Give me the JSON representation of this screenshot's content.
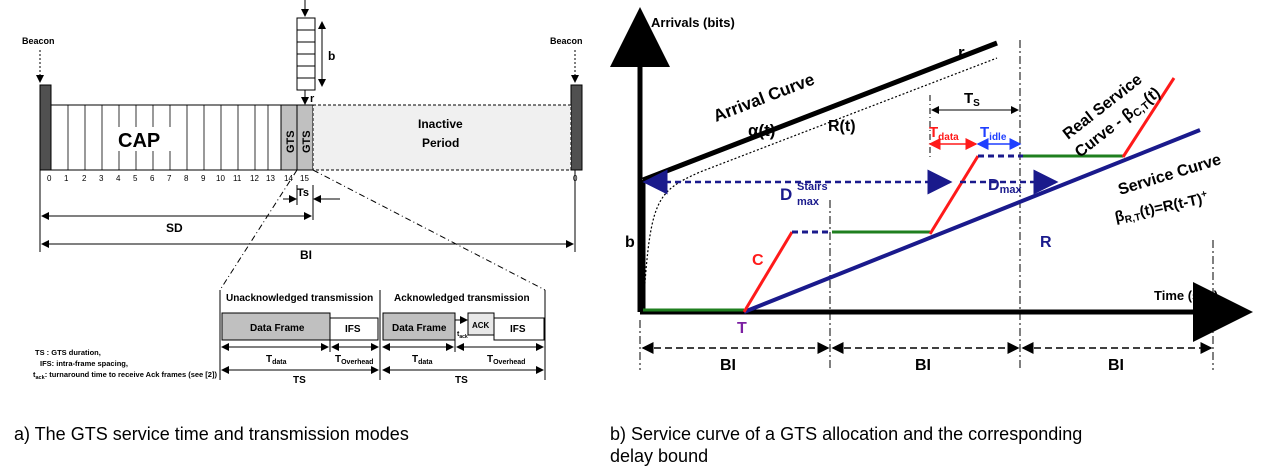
{
  "left": {
    "beacon_left": "Beacon",
    "beacon_right": "Beacon",
    "queue_b": "b",
    "queue_r": "r",
    "cap": "CAP",
    "gts1": "GTS",
    "gts2": "GTS",
    "inactive_line1": "Inactive",
    "inactive_line2": "Period",
    "slots": [
      "0",
      "1",
      "2",
      "3",
      "4",
      "5",
      "6",
      "7",
      "8",
      "9",
      "10",
      "11",
      "12",
      "13",
      "14",
      "15"
    ],
    "slot_end": "0",
    "ts": "Ts",
    "sd": "SD",
    "bi": "BI",
    "unack_title": "Unacknowledged transmission",
    "ack_title": "Acknowledged transmission",
    "data_frame": "Data Frame",
    "ifs": "IFS",
    "ack": "ACK",
    "tack": "t",
    "tack_sub": "ack",
    "t_data": "T",
    "t_data_sub": "data",
    "t_overhead": "T",
    "t_overhead_sub": "Overhead",
    "ts_bottom": "TS",
    "legend": [
      "TS : GTS duration,",
      "IFS: intra-frame spacing,",
      "t",
      "ack",
      ": turnaround time to receive Ack frames (see [2])"
    ]
  },
  "right": {
    "y_axis": "Arrivals (bits)",
    "x_axis": "Time (sec)",
    "arrival_curve": "Arrival Curve",
    "alpha": "α(t)",
    "r": "r",
    "rt": "R(t)",
    "ts": "T",
    "ts_sub": "S",
    "tdata": "T",
    "tdata_sub": "data",
    "tidle": "T",
    "tidle_sub": "idle",
    "real_service_1": "Real Service",
    "real_service_2": "Curve - β",
    "real_service_sub": "C,T",
    "real_service_3": "(t)",
    "service_curve": "Service Curve",
    "beta": "β",
    "beta_sub": "R,T",
    "beta_rest": "(t)=R(t-T)",
    "beta_sup": "+",
    "dmax_stairs": "D",
    "dmax_stairs_sup": "Stairs",
    "dmax_stairs_sub": "max",
    "dmax": "D",
    "dmax_sub": "max",
    "b": "b",
    "c": "C",
    "R": "R",
    "T": "T",
    "bi": [
      "BI",
      "BI",
      "BI"
    ]
  },
  "captions": {
    "a": "a) The GTS service time and transmission modes",
    "b_line1": "b) Service curve of a GTS allocation and the corresponding",
    "b_line2": "delay bound"
  },
  "colors": {
    "red": "#ff1a1a",
    "navy": "#1a1a8c",
    "blue": "#1f3fff",
    "green": "#1f7f1f",
    "purple": "#7b1fa2",
    "gray_fill": "#c0c0c0",
    "dark_gray": "#505050"
  }
}
